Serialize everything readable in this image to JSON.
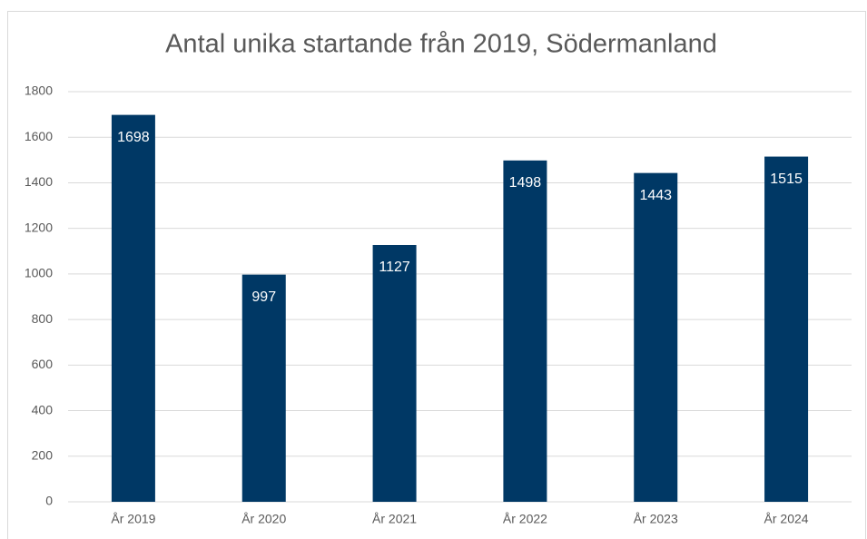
{
  "chart_data": {
    "type": "bar",
    "title": "Antal unika startande från 2019, Södermanland",
    "categories": [
      "År 2019",
      "År 2020",
      "År 2021",
      "År 2022",
      "År 2023",
      "År 2024"
    ],
    "values": [
      1698,
      997,
      1127,
      1498,
      1443,
      1515
    ],
    "color": "#003865",
    "ylim": [
      0,
      1800
    ],
    "yticks": [
      0,
      200,
      400,
      600,
      800,
      1000,
      1200,
      1400,
      1600,
      1800
    ],
    "grid": true
  }
}
